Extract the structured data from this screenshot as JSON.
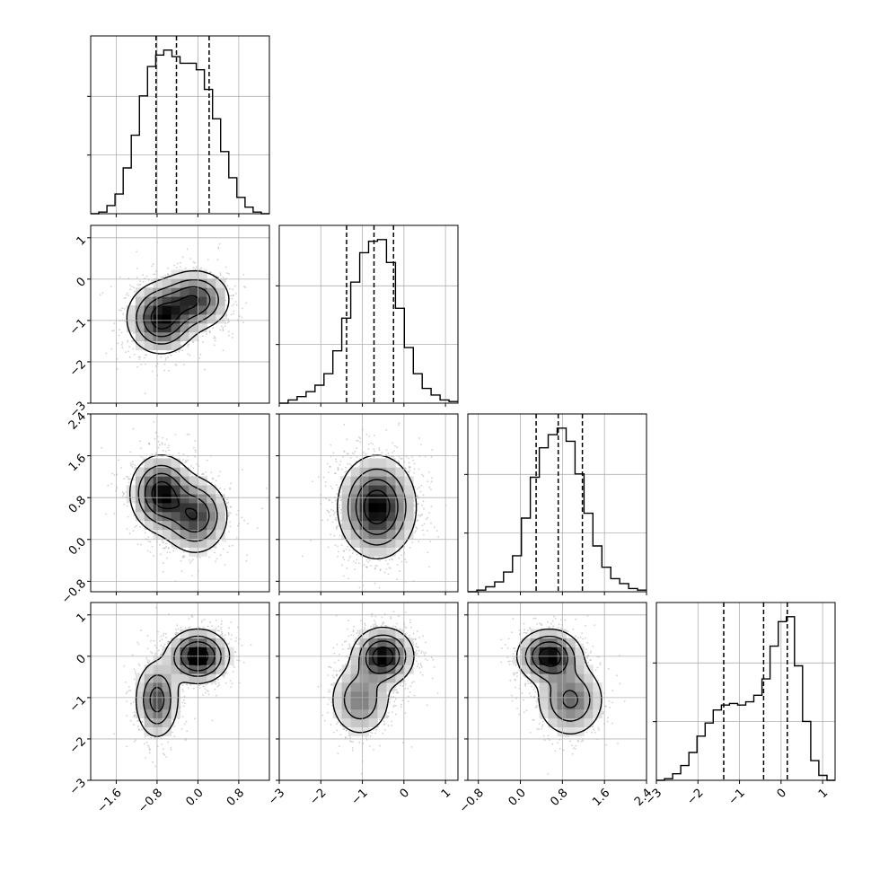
{
  "chart_data": {
    "type": "corner",
    "n_params": 4,
    "grid": true,
    "tick_labels": [
      [
        "-1.6",
        "-0.8",
        "0.0",
        "0.8"
      ],
      [
        "-3",
        "-2",
        "-1",
        "0",
        "1"
      ],
      [
        "-0.8",
        "0.0",
        "0.8",
        "1.6",
        "2.4"
      ],
      [
        "-3",
        "-2",
        "-1",
        "0",
        "1"
      ]
    ],
    "ranges": [
      [
        -2.1,
        1.4
      ],
      [
        -3.0,
        1.3
      ],
      [
        -1.0,
        2.4
      ],
      [
        -3.0,
        1.3
      ]
    ],
    "quantiles": [
      [
        -0.82,
        -0.42,
        0.22
      ],
      [
        -1.38,
        -0.72,
        -0.25
      ],
      [
        0.3,
        0.72,
        1.18
      ],
      [
        -1.38,
        -0.42,
        0.15
      ]
    ],
    "histograms": [
      [
        0,
        0.01,
        0.05,
        0.12,
        0.28,
        0.48,
        0.72,
        0.9,
        0.97,
        1.0,
        0.96,
        0.92,
        0.92,
        0.88,
        0.76,
        0.58,
        0.38,
        0.22,
        0.1,
        0.04,
        0.01,
        0
      ],
      [
        0,
        0.02,
        0.04,
        0.07,
        0.11,
        0.18,
        0.32,
        0.52,
        0.74,
        0.92,
        0.99,
        1.0,
        0.86,
        0.58,
        0.34,
        0.18,
        0.09,
        0.05,
        0.02,
        0.01
      ],
      [
        0,
        0.01,
        0.03,
        0.06,
        0.12,
        0.22,
        0.45,
        0.7,
        0.88,
        0.96,
        1.0,
        0.92,
        0.72,
        0.48,
        0.28,
        0.15,
        0.08,
        0.05,
        0.02,
        0.01
      ],
      [
        0,
        0.01,
        0.04,
        0.09,
        0.17,
        0.27,
        0.35,
        0.43,
        0.46,
        0.47,
        0.46,
        0.48,
        0.52,
        0.62,
        0.82,
        0.97,
        1.0,
        0.7,
        0.36,
        0.12,
        0.03,
        0
      ]
    ],
    "pairs": [
      {
        "x": 0,
        "y": 1,
        "modes": [
          {
            "mx": -0.72,
            "my": -0.95,
            "sx": 0.33,
            "sy": 0.42,
            "w": 0.55
          },
          {
            "mx": -0.05,
            "my": -0.5,
            "sx": 0.34,
            "sy": 0.36,
            "w": 0.45
          }
        ]
      },
      {
        "x": 0,
        "y": 2,
        "modes": [
          {
            "mx": -0.72,
            "my": 0.88,
            "sx": 0.3,
            "sy": 0.36,
            "w": 0.55
          },
          {
            "mx": -0.05,
            "my": 0.45,
            "sx": 0.32,
            "sy": 0.36,
            "w": 0.45
          }
        ]
      },
      {
        "x": 1,
        "y": 2,
        "modes": [
          {
            "mx": -0.65,
            "my": 0.62,
            "sx": 0.46,
            "sy": 0.48,
            "w": 1.0
          }
        ]
      },
      {
        "x": 0,
        "y": 3,
        "modes": [
          {
            "mx": 0.0,
            "my": 0.0,
            "sx": 0.3,
            "sy": 0.32,
            "w": 0.6
          },
          {
            "mx": -0.8,
            "my": -1.05,
            "sx": 0.22,
            "sy": 0.48,
            "w": 0.4
          }
        ]
      },
      {
        "x": 1,
        "y": 3,
        "modes": [
          {
            "mx": -0.5,
            "my": 0.0,
            "sx": 0.36,
            "sy": 0.34,
            "w": 0.65
          },
          {
            "mx": -1.05,
            "my": -1.05,
            "sx": 0.38,
            "sy": 0.46,
            "w": 0.35
          }
        ]
      },
      {
        "x": 2,
        "y": 3,
        "modes": [
          {
            "mx": 0.55,
            "my": 0.0,
            "sx": 0.3,
            "sy": 0.32,
            "w": 0.62
          },
          {
            "mx": 0.95,
            "my": -1.05,
            "sx": 0.33,
            "sy": 0.46,
            "w": 0.38
          }
        ]
      }
    ]
  }
}
